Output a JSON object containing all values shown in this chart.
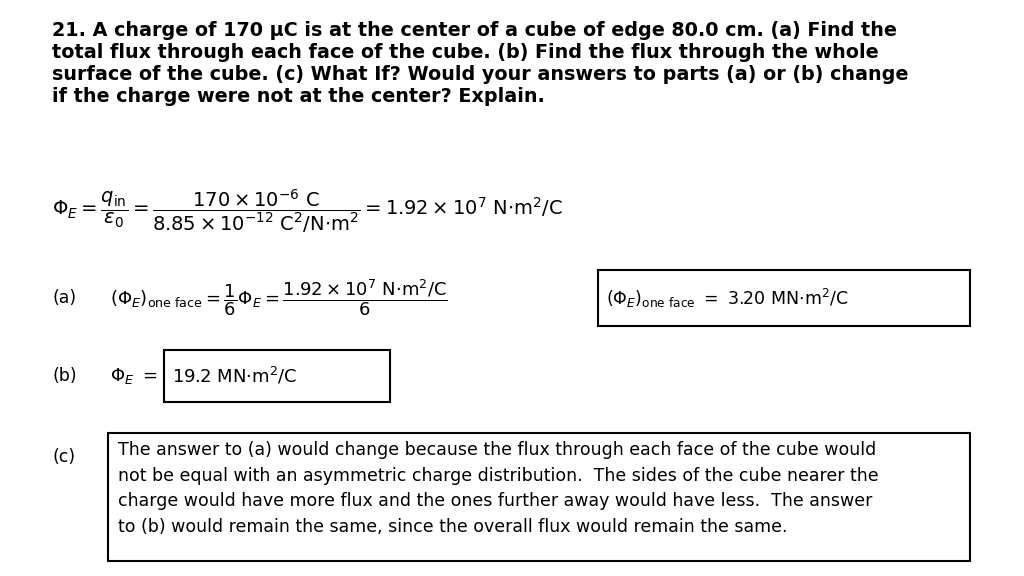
{
  "bg_color": "#ffffff",
  "title_line1": "21. A charge of 170 μC is at the center of a cube of edge 80.0 cm. (a) Find the",
  "title_line2": "total flux through each face of the cube. (b) Find the flux through the whole",
  "title_line3": "surface of the cube. (c) What If? Would your answers to parts (a) or (b) change",
  "title_line4": "if the charge were not at the center? Explain.",
  "part_c_text": "The answer to (a) would change because the flux through each face of the cube would\nnot be equal with an asymmetric charge distribution.  The sides of the cube nearer the\ncharge would have more flux and the ones further away would have less.  The answer\nto (b) would remain the same, since the overall flux would remain the same.",
  "font_size_title": 13.8,
  "font_size_body": 12.5,
  "font_size_math": 13.0,
  "font_size_small_math": 11.5
}
